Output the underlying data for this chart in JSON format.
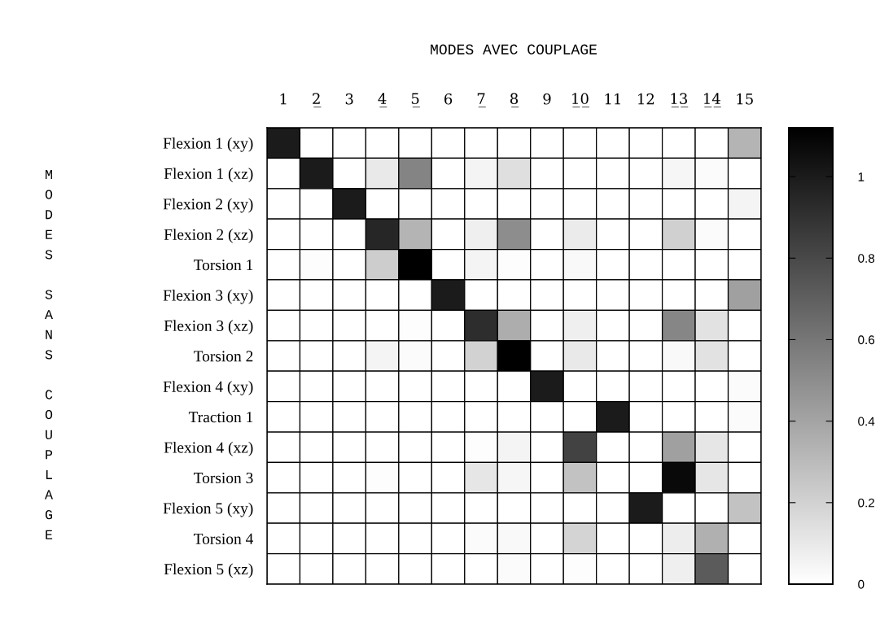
{
  "chart_data": {
    "type": "heatmap",
    "title": "MODES AVEC COUPLAGE",
    "ylabel": "MODES SANS COUPLAGE",
    "categories": [
      "1",
      "2̲",
      "3",
      "4̲",
      "5̲",
      "6",
      "7̲",
      "8̲",
      "9",
      "1̲0̲",
      "11",
      "12",
      "1̲3̲",
      "1̲4̲",
      "15"
    ],
    "y_categories": [
      "Flexion 1 (xy)",
      "Flexion 1 (xz)",
      "Flexion 2 (xy)",
      "Flexion 2 (xz)",
      "Torsion 1",
      "Flexion 3 (xy)",
      "Flexion 3 (xz)",
      "Torsion 2",
      "Flexion 4 (xy)",
      "Traction 1",
      "Flexion 4 (xz)",
      "Torsion 3",
      "Flexion 5 (xy)",
      "Torsion 4",
      "Flexion 5 (xz)"
    ],
    "cells": [
      [
        1.0,
        0,
        0,
        0,
        0,
        0,
        0,
        0,
        0,
        0,
        0,
        0,
        0,
        0,
        0.33
      ],
      [
        0,
        1.0,
        0,
        0.1,
        0.54,
        0,
        0.05,
        0.14,
        0,
        0,
        0,
        0,
        0.04,
        0.02,
        0
      ],
      [
        0,
        0,
        1.0,
        0,
        0,
        0,
        0,
        0,
        0,
        0,
        0,
        0,
        0,
        0,
        0.05
      ],
      [
        0,
        0,
        0,
        0.95,
        0.33,
        0,
        0.07,
        0.5,
        0,
        0.09,
        0,
        0,
        0.21,
        0.02,
        0
      ],
      [
        0,
        0.01,
        0,
        0.22,
        1.12,
        0,
        0.05,
        0.01,
        0,
        0.03,
        0,
        0,
        0,
        0,
        0
      ],
      [
        0,
        0,
        0,
        0,
        0,
        1.0,
        0,
        0,
        0,
        0,
        0,
        0,
        0,
        0,
        0.42
      ],
      [
        0,
        0,
        0,
        0,
        0.01,
        0,
        0.92,
        0.36,
        0,
        0.07,
        0,
        0,
        0.53,
        0.13,
        0
      ],
      [
        0,
        0,
        0,
        0.05,
        0.02,
        0,
        0.2,
        1.12,
        0,
        0.1,
        0,
        0,
        0.03,
        0.13,
        0
      ],
      [
        0,
        0,
        0,
        0,
        0,
        0,
        0,
        0,
        1.0,
        0,
        0,
        0,
        0,
        0,
        0.02
      ],
      [
        0,
        0,
        0,
        0,
        0,
        0,
        0,
        0,
        0,
        0,
        1.0,
        0,
        0,
        0,
        0.02
      ],
      [
        0,
        0,
        0,
        0,
        0,
        0,
        0.01,
        0.05,
        0,
        0.83,
        0,
        0,
        0.42,
        0.11,
        0
      ],
      [
        0,
        0,
        0,
        0.01,
        0,
        0,
        0.11,
        0.04,
        0,
        0.27,
        0,
        0,
        1.08,
        0.11,
        0
      ],
      [
        0,
        0,
        0,
        0,
        0,
        0,
        0,
        0,
        0,
        0,
        0,
        1.0,
        0,
        0,
        0.27
      ],
      [
        0,
        0,
        0,
        0,
        0,
        0,
        0.02,
        0.03,
        0,
        0.19,
        0,
        0,
        0.08,
        0.35,
        0
      ],
      [
        0,
        0,
        0,
        0,
        0,
        0,
        0,
        0.02,
        0,
        0.01,
        0,
        0,
        0.07,
        0.72,
        0
      ]
    ],
    "clim": [
      0,
      1.12
    ],
    "cticks": [
      0,
      0.2,
      0.4,
      0.6,
      0.8,
      1
    ]
  }
}
